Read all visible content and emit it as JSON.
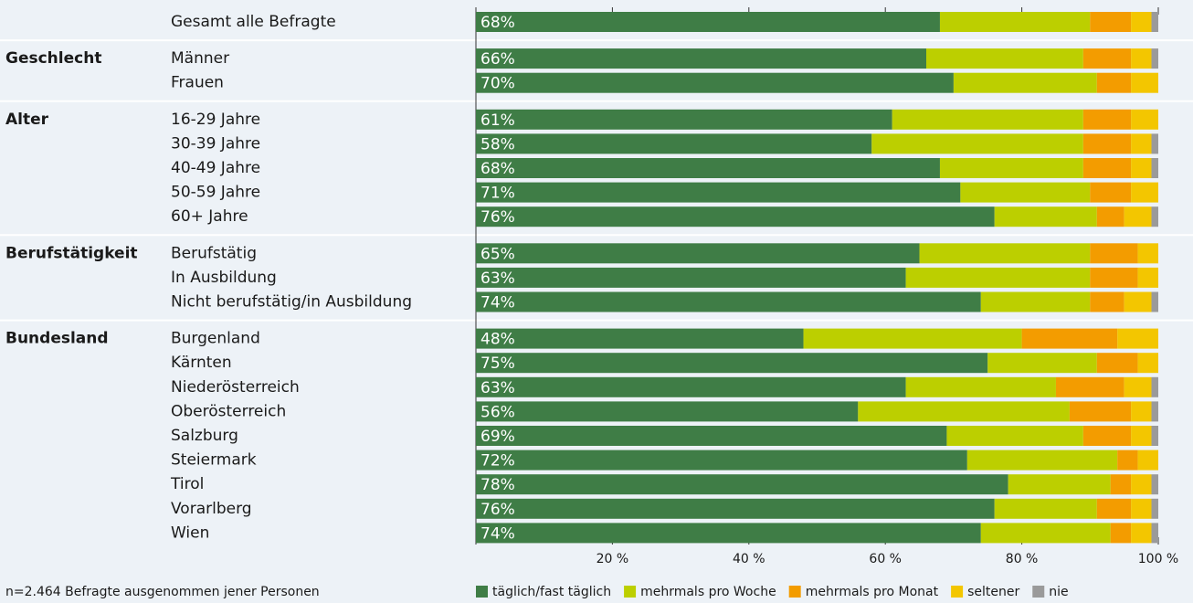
{
  "chart_data": {
    "type": "stacked-bar-horizontal",
    "categories": [
      "Gesamt alle Befragte",
      "Männer",
      "Frauen",
      "16-29 Jahre",
      "30-39 Jahre",
      "40-49 Jahre",
      "50-59 Jahre",
      "60+ Jahre",
      "Berufstätig",
      "In Ausbildung",
      "Nicht berufstätig/in Ausbildung",
      "Burgenland",
      "Kärnten",
      "Niederösterreich",
      "Oberösterreich",
      "Salzburg",
      "Steiermark",
      "Tirol",
      "Vorarlberg",
      "Wien"
    ],
    "group_labels": [
      null,
      "Geschlecht",
      null,
      "Alter",
      null,
      null,
      null,
      null,
      "Berufstätigkeit",
      null,
      null,
      "Bundesland",
      null,
      null,
      null,
      null,
      null,
      null,
      null,
      null
    ],
    "series": [
      {
        "name": "täglich/fast täglich",
        "color": "#3f7d46",
        "values": [
          68,
          66,
          70,
          61,
          58,
          68,
          71,
          76,
          65,
          63,
          74,
          48,
          75,
          63,
          56,
          69,
          72,
          78,
          76,
          74
        ],
        "value_labels": [
          "68%",
          "66%",
          "70%",
          "61%",
          "58%",
          "68%",
          "71%",
          "76%",
          "65%",
          "63%",
          "74%",
          "48%",
          "75%",
          "63%",
          "56%",
          "69%",
          "72%",
          "78%",
          "76%",
          "74%"
        ]
      },
      {
        "name": "mehrmals pro Woche",
        "color": "#bccf00",
        "values": [
          22,
          23,
          21,
          28,
          31,
          21,
          19,
          15,
          25,
          27,
          16,
          32,
          16,
          22,
          31,
          20,
          22,
          15,
          15,
          19
        ]
      },
      {
        "name": "mehrmals pro Monat",
        "color": "#f39c00",
        "values": [
          6,
          7,
          5,
          7,
          7,
          7,
          6,
          4,
          7,
          7,
          5,
          14,
          6,
          10,
          9,
          7,
          3,
          3,
          5,
          3
        ]
      },
      {
        "name": "seltener",
        "color": "#f3c600",
        "values": [
          3,
          3,
          4,
          4,
          3,
          3,
          4,
          4,
          3,
          3,
          4,
          6,
          3,
          4,
          3,
          3,
          3,
          3,
          3,
          3
        ]
      },
      {
        "name": "nie",
        "color": "#9a9a9a",
        "values": [
          1,
          1,
          0,
          0,
          1,
          1,
          0,
          1,
          0,
          0,
          1,
          0,
          0,
          1,
          1,
          1,
          0,
          1,
          1,
          1
        ]
      }
    ],
    "xlim": [
      0,
      100
    ],
    "xticks": [
      {
        "value": 20,
        "label": "20 %"
      },
      {
        "value": 40,
        "label": "40 %"
      },
      {
        "value": 60,
        "label": "60 %"
      },
      {
        "value": 80,
        "label": "80 %"
      },
      {
        "value": 100,
        "label": "100 %"
      }
    ],
    "note": "n=2.464 Befragte ausgenommen jener Personen",
    "legend": "bottom"
  }
}
